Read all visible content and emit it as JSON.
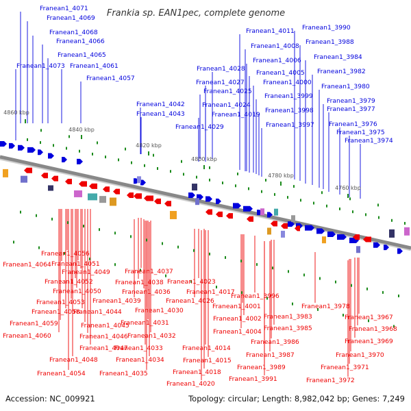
{
  "title": "Frankia sp. EAN1pec, complete genome",
  "footer": {
    "accession": "Accession: NC_009921",
    "summary": "Topology: circular; Length: 8,982,042 bp; Genes: 7,249"
  },
  "colors": {
    "forward": "#0000dd",
    "reverse": "#ee0000",
    "backbone": "#888888",
    "tick": "#1a8a1a"
  },
  "scale_markers": [
    {
      "label": "4860 kbp",
      "kbp": 4860
    },
    {
      "label": "4840 kbp",
      "kbp": 4840
    },
    {
      "label": "4820 kbp",
      "kbp": 4820
    },
    {
      "label": "4800 kbp",
      "kbp": 4800
    },
    {
      "label": "4780 kbp",
      "kbp": 4780
    },
    {
      "label": "4760 kbp",
      "kbp": 4760
    }
  ],
  "forward_genes": [
    {
      "name": "Franean1_4071"
    },
    {
      "name": "Franean1_4069"
    },
    {
      "name": "Franean1_4068"
    },
    {
      "name": "Franean1_4066"
    },
    {
      "name": "Franean1_4065"
    },
    {
      "name": "Franean1_4073"
    },
    {
      "name": "Franean1_4061"
    },
    {
      "name": "Franean1_4057"
    },
    {
      "name": "Franean1_4042"
    },
    {
      "name": "Franean1_4043"
    },
    {
      "name": "Franean1_4028"
    },
    {
      "name": "Franean1_4027"
    },
    {
      "name": "Franean1_4025"
    },
    {
      "name": "Franean1_4024"
    },
    {
      "name": "Franean1_4019"
    },
    {
      "name": "Franean1_4029"
    },
    {
      "name": "Franean1_4011"
    },
    {
      "name": "Franean1_4008"
    },
    {
      "name": "Franean1_4006"
    },
    {
      "name": "Franean1_4005"
    },
    {
      "name": "Franean1_4000"
    },
    {
      "name": "Franean1_3999"
    },
    {
      "name": "Franean1_3998"
    },
    {
      "name": "Franean1_3997"
    },
    {
      "name": "Franean1_3990"
    },
    {
      "name": "Franean1_3988"
    },
    {
      "name": "Franean1_3984"
    },
    {
      "name": "Franean1_3982"
    },
    {
      "name": "Franean1_3980"
    },
    {
      "name": "Franean1_3979"
    },
    {
      "name": "Franean1_3977"
    },
    {
      "name": "Franean1_3976"
    },
    {
      "name": "Franean1_3975"
    },
    {
      "name": "Franean1_3974"
    }
  ],
  "reverse_genes": [
    {
      "name": "Franean1_4056"
    },
    {
      "name": "Franean1_4064"
    },
    {
      "name": "Franean1_4051"
    },
    {
      "name": "Franean1_4049"
    },
    {
      "name": "Franean1_4052"
    },
    {
      "name": "Franean1_4050"
    },
    {
      "name": "Franean1_4053"
    },
    {
      "name": "Franean1_4058"
    },
    {
      "name": "Franean1_4059"
    },
    {
      "name": "Franean1_4060"
    },
    {
      "name": "Franean1_4044"
    },
    {
      "name": "Franean1_4045"
    },
    {
      "name": "Franean1_4046"
    },
    {
      "name": "Franean1_4047"
    },
    {
      "name": "Franean1_4048"
    },
    {
      "name": "Franean1_4054"
    },
    {
      "name": "Franean1_4037"
    },
    {
      "name": "Franean1_4038"
    },
    {
      "name": "Franean1_4036"
    },
    {
      "name": "Franean1_4039"
    },
    {
      "name": "Franean1_4030"
    },
    {
      "name": "Franean1_4031"
    },
    {
      "name": "Franean1_4032"
    },
    {
      "name": "Franean1_4033"
    },
    {
      "name": "Franean1_4034"
    },
    {
      "name": "Franean1_4035"
    },
    {
      "name": "Franean1_4023"
    },
    {
      "name": "Franean1_4017"
    },
    {
      "name": "Franean1_4026"
    },
    {
      "name": "Franean1_4014"
    },
    {
      "name": "Franean1_4015"
    },
    {
      "name": "Franean1_4018"
    },
    {
      "name": "Franean1_4020"
    },
    {
      "name": "Franean1_4001"
    },
    {
      "name": "Franean1_4002"
    },
    {
      "name": "Franean1_4004"
    },
    {
      "name": "Franean1_3996"
    },
    {
      "name": "Franean1_3983"
    },
    {
      "name": "Franean1_3985"
    },
    {
      "name": "Franean1_3986"
    },
    {
      "name": "Franean1_3987"
    },
    {
      "name": "Franean1_3989"
    },
    {
      "name": "Franean1_3991"
    },
    {
      "name": "Franean1_3978"
    },
    {
      "name": "Franean1_3967"
    },
    {
      "name": "Franean1_3968"
    },
    {
      "name": "Franean1_3969"
    },
    {
      "name": "Franean1_3970"
    },
    {
      "name": "Franean1_3971"
    },
    {
      "name": "Franean1_3972"
    }
  ]
}
